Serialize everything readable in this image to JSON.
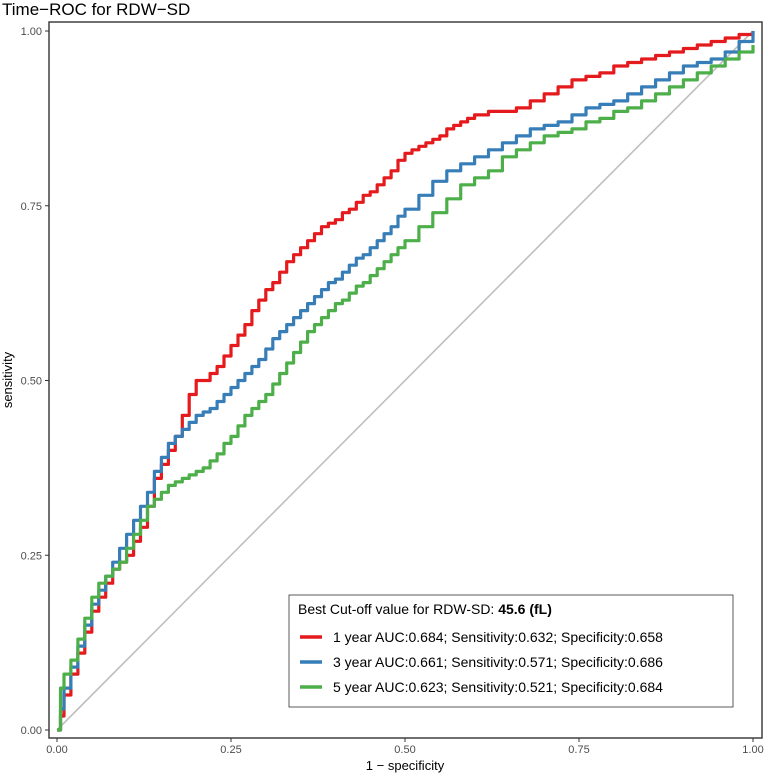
{
  "chart_data": {
    "type": "line",
    "title": "Time−ROC for RDW−SD",
    "xlabel": "1 − specificity",
    "ylabel": "sensitivity",
    "xlim": [
      0,
      1
    ],
    "ylim": [
      0,
      1
    ],
    "x_ticks": [
      0,
      0.25,
      0.5,
      0.75,
      1
    ],
    "y_ticks": [
      0,
      0.25,
      0.5,
      0.75,
      1
    ],
    "x_tick_labels": [
      "0.00",
      "0.25",
      "0.50",
      "0.75",
      "1.00"
    ],
    "y_tick_labels": [
      "0.00",
      "0.25",
      "0.50",
      "0.75",
      "1.00"
    ],
    "grid": false,
    "legend_position": "bottom-right",
    "legend_title": "Best Cut-off value for RDW-SD: ",
    "legend_title_bold": "45.6 (fL)",
    "reference_line": {
      "name": "chance diagonal",
      "x": [
        0,
        1
      ],
      "y": [
        0,
        1
      ],
      "color": "#bfbfbf"
    },
    "series": [
      {
        "name": "1 year AUC:0.684; Sensitivity:0.632; Specificity:0.658",
        "color": "#e41a1c",
        "x": [
          0,
          0.005,
          0.01,
          0.02,
          0.03,
          0.04,
          0.05,
          0.06,
          0.07,
          0.08,
          0.09,
          0.1,
          0.11,
          0.12,
          0.13,
          0.14,
          0.15,
          0.16,
          0.17,
          0.18,
          0.19,
          0.2,
          0.21,
          0.22,
          0.23,
          0.24,
          0.25,
          0.26,
          0.27,
          0.28,
          0.29,
          0.3,
          0.31,
          0.32,
          0.33,
          0.34,
          0.35,
          0.36,
          0.37,
          0.38,
          0.39,
          0.4,
          0.41,
          0.42,
          0.43,
          0.44,
          0.45,
          0.46,
          0.47,
          0.48,
          0.49,
          0.5,
          0.51,
          0.52,
          0.53,
          0.54,
          0.55,
          0.56,
          0.57,
          0.58,
          0.59,
          0.6,
          0.62,
          0.64,
          0.66,
          0.68,
          0.7,
          0.72,
          0.74,
          0.76,
          0.78,
          0.8,
          0.82,
          0.84,
          0.86,
          0.88,
          0.9,
          0.92,
          0.94,
          0.96,
          0.98,
          1.0
        ],
        "y": [
          0,
          0.02,
          0.05,
          0.08,
          0.11,
          0.14,
          0.17,
          0.19,
          0.21,
          0.23,
          0.24,
          0.25,
          0.27,
          0.29,
          0.32,
          0.36,
          0.38,
          0.4,
          0.42,
          0.45,
          0.48,
          0.5,
          0.5,
          0.51,
          0.52,
          0.535,
          0.55,
          0.565,
          0.58,
          0.6,
          0.615,
          0.63,
          0.64,
          0.655,
          0.67,
          0.68,
          0.69,
          0.7,
          0.71,
          0.72,
          0.725,
          0.73,
          0.74,
          0.745,
          0.755,
          0.765,
          0.77,
          0.78,
          0.79,
          0.8,
          0.815,
          0.825,
          0.83,
          0.835,
          0.84,
          0.845,
          0.85,
          0.86,
          0.865,
          0.87,
          0.875,
          0.88,
          0.885,
          0.885,
          0.89,
          0.9,
          0.91,
          0.92,
          0.93,
          0.935,
          0.94,
          0.95,
          0.955,
          0.96,
          0.965,
          0.97,
          0.975,
          0.98,
          0.985,
          0.99,
          0.995,
          1.0
        ]
      },
      {
        "name": "3 year AUC:0.661; Sensitivity:0.571; Specificity:0.686",
        "color": "#377eb8",
        "x": [
          0,
          0.005,
          0.01,
          0.02,
          0.03,
          0.04,
          0.05,
          0.06,
          0.07,
          0.08,
          0.09,
          0.1,
          0.11,
          0.12,
          0.13,
          0.14,
          0.15,
          0.16,
          0.17,
          0.18,
          0.19,
          0.2,
          0.21,
          0.22,
          0.23,
          0.24,
          0.25,
          0.26,
          0.27,
          0.28,
          0.29,
          0.3,
          0.31,
          0.32,
          0.33,
          0.34,
          0.35,
          0.36,
          0.37,
          0.38,
          0.39,
          0.4,
          0.41,
          0.42,
          0.43,
          0.44,
          0.45,
          0.46,
          0.47,
          0.48,
          0.49,
          0.5,
          0.52,
          0.54,
          0.56,
          0.58,
          0.6,
          0.62,
          0.64,
          0.66,
          0.68,
          0.7,
          0.72,
          0.74,
          0.76,
          0.78,
          0.8,
          0.82,
          0.84,
          0.86,
          0.88,
          0.9,
          0.92,
          0.94,
          0.96,
          0.98,
          1.0
        ],
        "y": [
          0,
          0.03,
          0.06,
          0.09,
          0.12,
          0.15,
          0.18,
          0.2,
          0.22,
          0.24,
          0.26,
          0.28,
          0.3,
          0.32,
          0.34,
          0.37,
          0.39,
          0.41,
          0.42,
          0.43,
          0.44,
          0.45,
          0.455,
          0.46,
          0.47,
          0.48,
          0.49,
          0.5,
          0.51,
          0.52,
          0.53,
          0.545,
          0.56,
          0.57,
          0.58,
          0.59,
          0.6,
          0.61,
          0.62,
          0.63,
          0.64,
          0.645,
          0.655,
          0.665,
          0.675,
          0.68,
          0.69,
          0.7,
          0.71,
          0.72,
          0.735,
          0.745,
          0.765,
          0.785,
          0.8,
          0.81,
          0.82,
          0.83,
          0.84,
          0.85,
          0.86,
          0.865,
          0.87,
          0.88,
          0.89,
          0.895,
          0.9,
          0.91,
          0.92,
          0.93,
          0.94,
          0.95,
          0.955,
          0.96,
          0.97,
          0.985,
          1.0
        ]
      },
      {
        "name": "5 year AUC:0.623; Sensitivity:0.521; Specificity:0.684",
        "color": "#4daf4a",
        "x": [
          0,
          0.005,
          0.01,
          0.02,
          0.03,
          0.04,
          0.05,
          0.06,
          0.07,
          0.08,
          0.09,
          0.1,
          0.11,
          0.12,
          0.13,
          0.14,
          0.15,
          0.16,
          0.17,
          0.18,
          0.19,
          0.2,
          0.21,
          0.22,
          0.23,
          0.24,
          0.25,
          0.26,
          0.27,
          0.28,
          0.29,
          0.3,
          0.31,
          0.32,
          0.33,
          0.34,
          0.35,
          0.36,
          0.37,
          0.38,
          0.39,
          0.4,
          0.41,
          0.42,
          0.43,
          0.44,
          0.45,
          0.46,
          0.47,
          0.48,
          0.49,
          0.5,
          0.52,
          0.54,
          0.56,
          0.58,
          0.6,
          0.62,
          0.64,
          0.66,
          0.68,
          0.7,
          0.72,
          0.74,
          0.76,
          0.78,
          0.8,
          0.82,
          0.84,
          0.86,
          0.88,
          0.9,
          0.92,
          0.94,
          0.96,
          0.98,
          1.0
        ],
        "y": [
          0,
          0.06,
          0.08,
          0.1,
          0.13,
          0.16,
          0.19,
          0.21,
          0.22,
          0.23,
          0.24,
          0.26,
          0.28,
          0.3,
          0.32,
          0.33,
          0.34,
          0.35,
          0.355,
          0.36,
          0.365,
          0.37,
          0.375,
          0.385,
          0.395,
          0.41,
          0.42,
          0.435,
          0.45,
          0.46,
          0.47,
          0.48,
          0.495,
          0.51,
          0.525,
          0.54,
          0.555,
          0.57,
          0.58,
          0.59,
          0.6,
          0.61,
          0.615,
          0.625,
          0.635,
          0.64,
          0.65,
          0.66,
          0.67,
          0.68,
          0.69,
          0.7,
          0.72,
          0.74,
          0.76,
          0.78,
          0.79,
          0.8,
          0.82,
          0.83,
          0.84,
          0.85,
          0.855,
          0.86,
          0.87,
          0.875,
          0.885,
          0.89,
          0.9,
          0.91,
          0.92,
          0.93,
          0.94,
          0.95,
          0.96,
          0.97,
          0.98
        ]
      }
    ]
  }
}
